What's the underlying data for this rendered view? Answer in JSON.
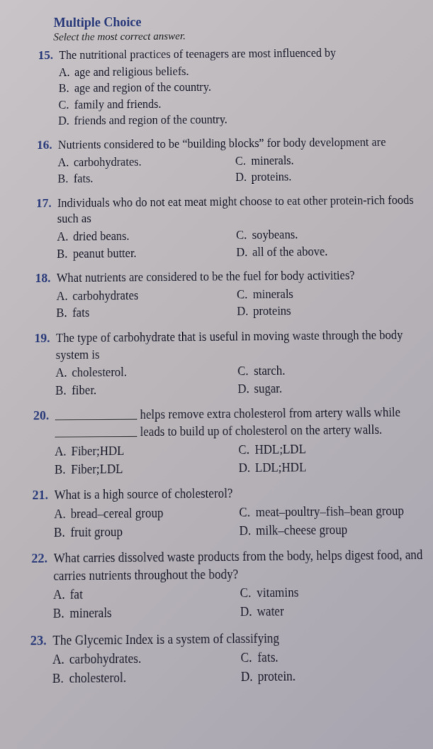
{
  "header": {
    "title": "Multiple Choice",
    "instruction": "Select the most correct answer."
  },
  "questions": [
    {
      "num": "15.",
      "stem": "The nutritional practices of teenagers are most influenced by",
      "layout": "single",
      "opts": [
        {
          "l": "A.",
          "t": "age and religious beliefs."
        },
        {
          "l": "B.",
          "t": "age and region of the country."
        },
        {
          "l": "C.",
          "t": "family and friends."
        },
        {
          "l": "D.",
          "t": "friends and region of the country."
        }
      ]
    },
    {
      "num": "16.",
      "stem": "Nutrients considered to be “building blocks” for body development are",
      "layout": "two",
      "left": [
        {
          "l": "A.",
          "t": "carbohydrates."
        },
        {
          "l": "B.",
          "t": "fats."
        }
      ],
      "right": [
        {
          "l": "C.",
          "t": "minerals."
        },
        {
          "l": "D.",
          "t": "proteins."
        }
      ]
    },
    {
      "num": "17.",
      "stem": "Individuals who do not eat meat might choose to eat other protein-rich foods such as",
      "layout": "two",
      "left": [
        {
          "l": "A.",
          "t": "dried beans."
        },
        {
          "l": "B.",
          "t": "peanut butter."
        }
      ],
      "right": [
        {
          "l": "C.",
          "t": "soybeans."
        },
        {
          "l": "D.",
          "t": "all of the above."
        }
      ]
    },
    {
      "num": "18.",
      "stem": "What nutrients are considered to be the fuel for body activities?",
      "layout": "two",
      "left": [
        {
          "l": "A.",
          "t": "carbohydrates"
        },
        {
          "l": "B.",
          "t": "fats"
        }
      ],
      "right": [
        {
          "l": "C.",
          "t": "minerals"
        },
        {
          "l": "D.",
          "t": "proteins"
        }
      ]
    },
    {
      "num": "19.",
      "stem": "The type of carbohydrate that is useful in moving waste through the body system is",
      "layout": "two",
      "left": [
        {
          "l": "A.",
          "t": "cholesterol."
        },
        {
          "l": "B.",
          "t": "fiber."
        }
      ],
      "right": [
        {
          "l": "C.",
          "t": "starch."
        },
        {
          "l": "D.",
          "t": "sugar."
        }
      ]
    },
    {
      "num": "20.",
      "stem_parts": {
        "pre1": "",
        "mid": " helps remove extra cholesterol from artery walls while ",
        "post": " leads to build up of cholesterol on the artery walls."
      },
      "layout": "two",
      "left": [
        {
          "l": "A.",
          "t": "Fiber;HDL"
        },
        {
          "l": "B.",
          "t": "Fiber;LDL"
        }
      ],
      "right": [
        {
          "l": "C.",
          "t": "HDL;LDL"
        },
        {
          "l": "D.",
          "t": "LDL;HDL"
        }
      ]
    },
    {
      "num": "21.",
      "stem": "What is a high source of cholesterol?",
      "layout": "two",
      "left": [
        {
          "l": "A.",
          "t": "bread–cereal group"
        },
        {
          "l": "B.",
          "t": "fruit group"
        }
      ],
      "right": [
        {
          "l": "C.",
          "t": "meat–poultry–fish–bean group"
        },
        {
          "l": "D.",
          "t": "milk–cheese group"
        }
      ]
    },
    {
      "num": "22.",
      "stem": "What carries dissolved waste products from the body, helps digest food, and carries nutrients throughout the body?",
      "layout": "two",
      "left": [
        {
          "l": "A.",
          "t": "fat"
        },
        {
          "l": "B.",
          "t": "minerals"
        }
      ],
      "right": [
        {
          "l": "C.",
          "t": "vitamins"
        },
        {
          "l": "D.",
          "t": "water"
        }
      ]
    },
    {
      "num": "23.",
      "stem": "The Glycemic Index is a system of classifying",
      "layout": "two",
      "left": [
        {
          "l": "A.",
          "t": "carbohydrates."
        },
        {
          "l": "B.",
          "t": "cholesterol."
        }
      ],
      "right": [
        {
          "l": "C.",
          "t": "fats."
        },
        {
          "l": "D.",
          "t": "protein."
        }
      ]
    }
  ]
}
